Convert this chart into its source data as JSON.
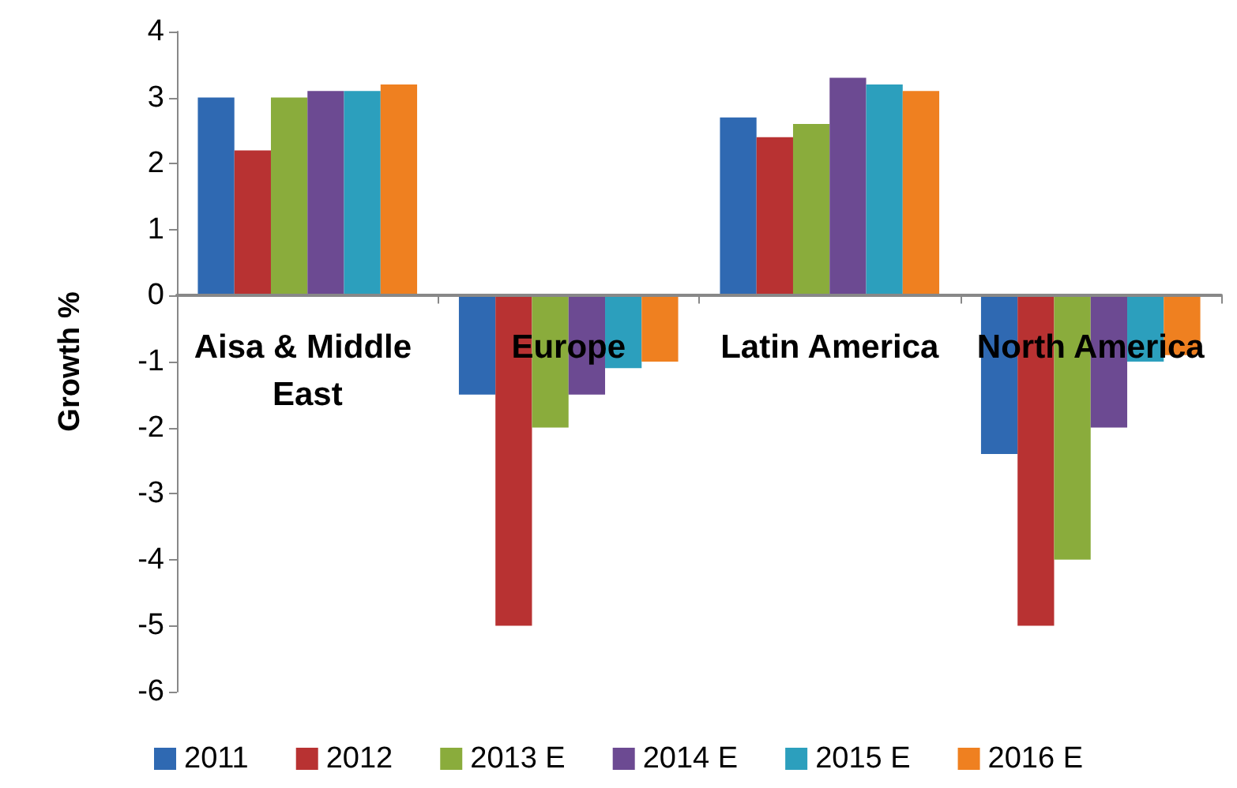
{
  "chart_data": {
    "type": "bar",
    "ylabel": "Growth %",
    "categories": [
      "Aisa & Middle East",
      "Europe",
      "Latin America",
      "North America"
    ],
    "series": [
      {
        "name": "2011",
        "color": "#2f69b2",
        "values": [
          3.0,
          -1.5,
          2.7,
          -2.4
        ]
      },
      {
        "name": "2012",
        "color": "#b83232",
        "values": [
          2.2,
          -5.0,
          2.4,
          -5.0
        ]
      },
      {
        "name": "2013 E",
        "color": "#8aac3c",
        "values": [
          3.0,
          -2.0,
          2.6,
          -4.0
        ]
      },
      {
        "name": "2014 E",
        "color": "#6c4a92",
        "values": [
          3.1,
          -1.5,
          3.3,
          -2.0
        ]
      },
      {
        "name": "2015 E",
        "color": "#2c9fbd",
        "values": [
          3.1,
          -1.1,
          3.2,
          -1.0
        ]
      },
      {
        "name": "2016 E",
        "color": "#ef8020",
        "values": [
          3.2,
          -1.0,
          3.1,
          -0.9
        ]
      }
    ],
    "ylim": [
      -6,
      4
    ],
    "yticks": [
      -6,
      -5,
      -4,
      -3,
      -2,
      -1,
      0,
      1,
      2,
      3,
      4
    ],
    "legend": "bottom"
  }
}
